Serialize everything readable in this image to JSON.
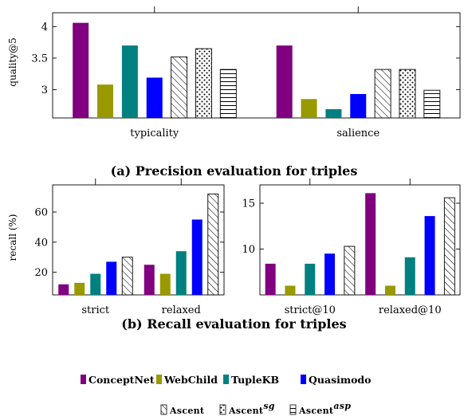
{
  "colors": {
    "ConceptNet": "#800080",
    "WebChild": "#999900",
    "TupleKB": "#008080",
    "Quasimodo": "#0000ff",
    "Ascent": "#ffffff",
    "Ascent_sg": "#ffffff",
    "Ascent_asp": "#ffffff"
  },
  "captions": {
    "a": "(a) Precision evaluation for triples",
    "b": "(b) Recall evaluation for triples"
  },
  "legend": {
    "row1": [
      "ConceptNet",
      "WebChild",
      "TupleKB",
      "Quasimodo"
    ],
    "ascent": "Ascent",
    "ascent_sg_sup": "sg",
    "ascent_asp_sup": "asp"
  },
  "chart_data": [
    {
      "type": "bar",
      "ylabel": "quality@5",
      "categories": [
        "typicality",
        "salience"
      ],
      "ylim": [
        2.55,
        4.22
      ],
      "yticks": [
        3,
        3.5,
        4
      ],
      "ytick_labels": [
        "3",
        "3.5",
        "4"
      ],
      "series": [
        {
          "name": "ConceptNet",
          "values": [
            4.06,
            3.7
          ],
          "pattern": "solid"
        },
        {
          "name": "WebChild",
          "values": [
            3.08,
            2.85
          ],
          "pattern": "solid"
        },
        {
          "name": "TupleKB",
          "values": [
            3.7,
            2.69
          ],
          "pattern": "solid"
        },
        {
          "name": "Quasimodo",
          "values": [
            3.19,
            2.93
          ],
          "pattern": "solid"
        },
        {
          "name": "Ascent",
          "values": [
            3.52,
            3.32
          ],
          "pattern": "diagonal"
        },
        {
          "name": "Ascent sg",
          "values": [
            3.65,
            3.32
          ],
          "pattern": "dots"
        },
        {
          "name": "Ascent asp",
          "values": [
            3.32,
            2.99
          ],
          "pattern": "horizontal"
        }
      ]
    },
    {
      "type": "bar",
      "ylabel": "recall (%)",
      "categories": [
        "strict",
        "relaxed"
      ],
      "ylim": [
        5,
        78
      ],
      "yticks": [
        20,
        40,
        60
      ],
      "ytick_labels": [
        "20",
        "40",
        "60"
      ],
      "series": [
        {
          "name": "ConceptNet",
          "values": [
            12,
            25
          ],
          "pattern": "solid"
        },
        {
          "name": "WebChild",
          "values": [
            13,
            19
          ],
          "pattern": "solid"
        },
        {
          "name": "TupleKB",
          "values": [
            19,
            34
          ],
          "pattern": "solid"
        },
        {
          "name": "Quasimodo",
          "values": [
            27,
            55
          ],
          "pattern": "solid"
        },
        {
          "name": "Ascent",
          "values": [
            30,
            72
          ],
          "pattern": "diagonal"
        }
      ]
    },
    {
      "type": "bar",
      "ylabel": "",
      "categories": [
        "strict@10",
        "relaxed@10"
      ],
      "ylim": [
        5,
        17
      ],
      "yticks": [
        10,
        15
      ],
      "ytick_labels": [
        "10",
        "15"
      ],
      "series": [
        {
          "name": "ConceptNet",
          "values": [
            8.4,
            16.1
          ],
          "pattern": "solid"
        },
        {
          "name": "WebChild",
          "values": [
            6.0,
            6.0
          ],
          "pattern": "solid"
        },
        {
          "name": "TupleKB",
          "values": [
            8.4,
            9.1
          ],
          "pattern": "solid"
        },
        {
          "name": "Quasimodo",
          "values": [
            9.5,
            13.6
          ],
          "pattern": "solid"
        },
        {
          "name": "Ascent",
          "values": [
            10.3,
            15.6
          ],
          "pattern": "diagonal"
        }
      ]
    }
  ]
}
